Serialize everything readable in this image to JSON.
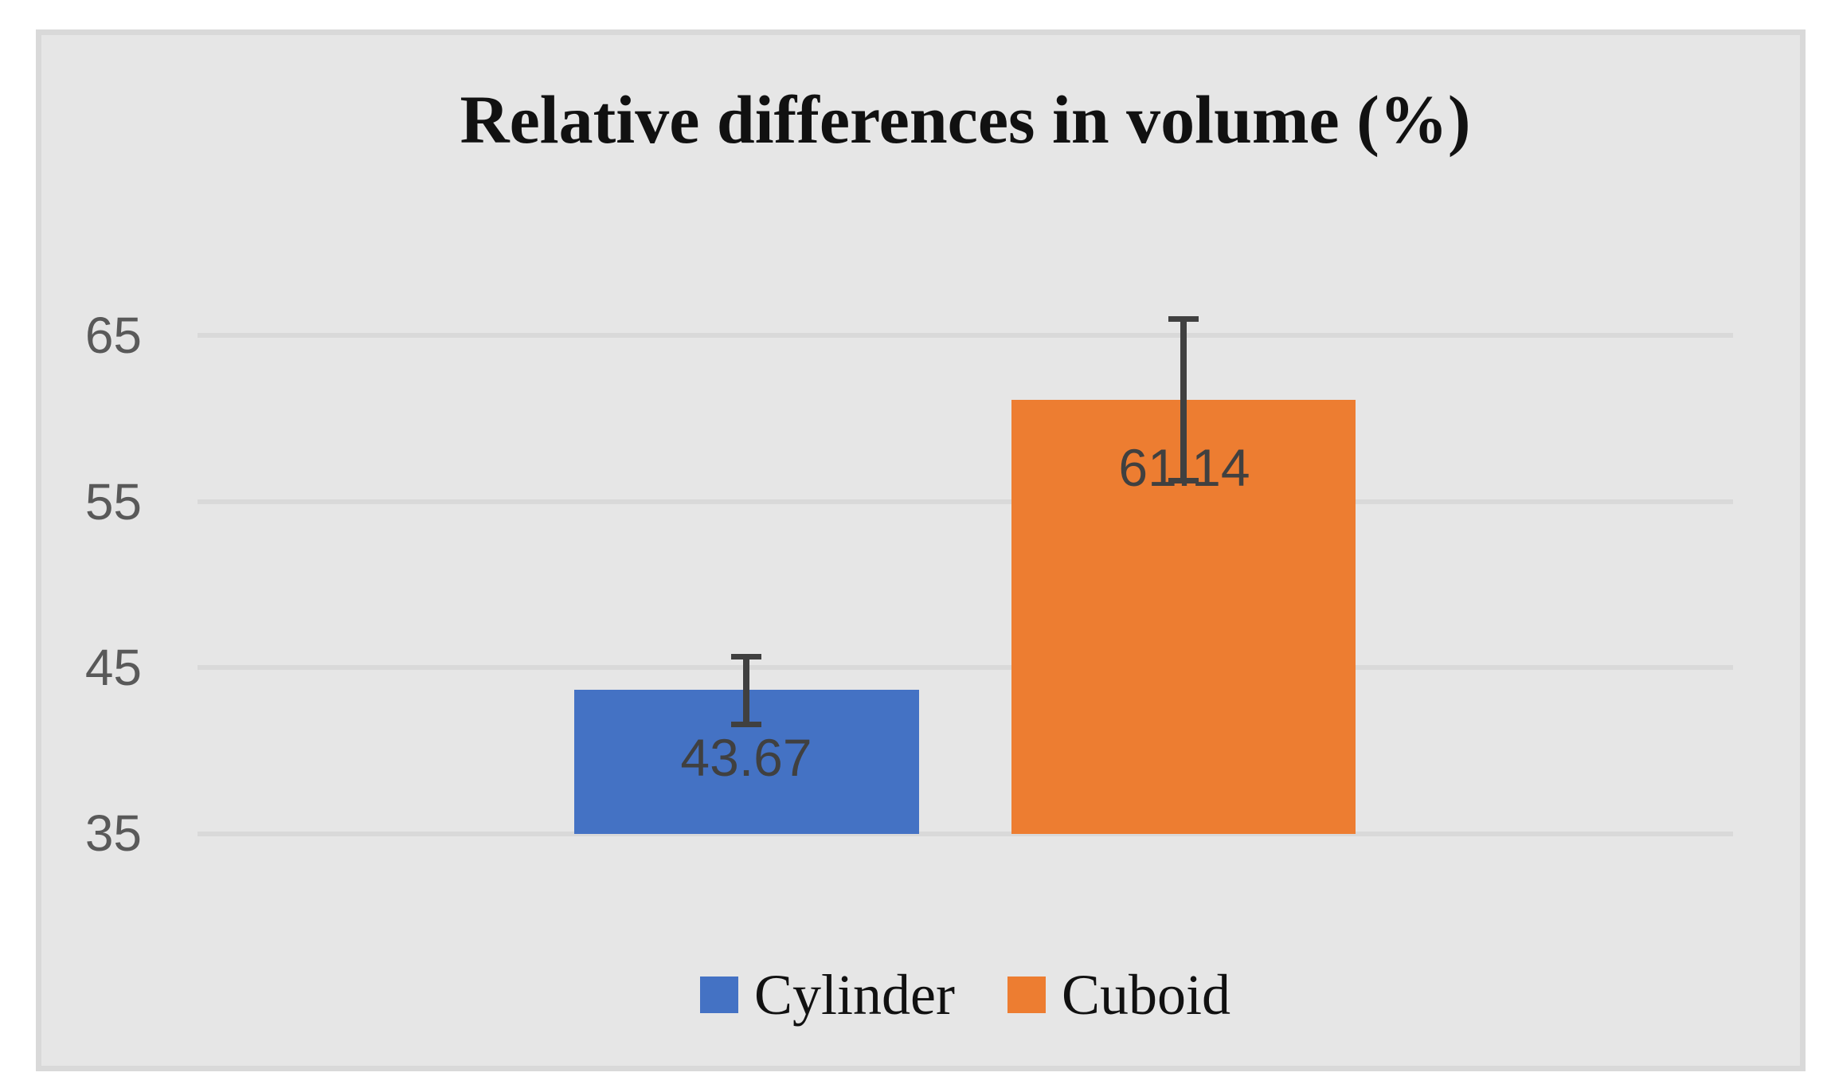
{
  "chart_data": {
    "type": "bar",
    "title": "Relative differences in volume (%)",
    "categories": [
      ""
    ],
    "series": [
      {
        "name": "Cylinder",
        "values": [
          43.67
        ],
        "label": "43.67",
        "error": 2.2,
        "color": "#4472C4"
      },
      {
        "name": "Cuboid",
        "values": [
          61.14
        ],
        "label": "61.14",
        "error": 5.05,
        "color": "#ED7D31"
      }
    ],
    "axis_baseline": 35,
    "ylim": [
      35,
      68
    ],
    "yticks": [
      "65",
      "55",
      "45",
      "35"
    ],
    "grid": true,
    "legend_position": "bottom",
    "error_bars": true
  },
  "colors": {
    "plot_background": "#e6e6e6",
    "frame_border": "#d9d9d9",
    "gridline": "#d9d9d9",
    "tick_label": "#595959",
    "data_label": "#404040",
    "error_bar": "#404040",
    "title_text": "#111111",
    "legend_text": "#111111",
    "cylinder": "#4472C4",
    "cuboid": "#ED7D31"
  }
}
